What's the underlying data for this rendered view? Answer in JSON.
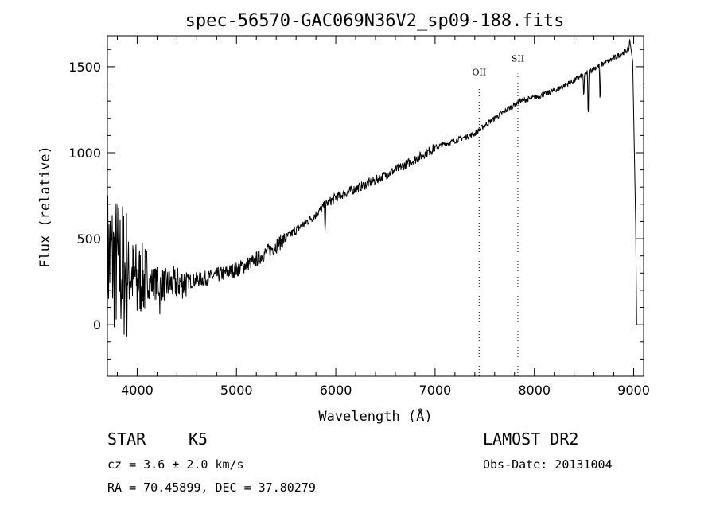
{
  "chart_data": {
    "type": "line",
    "title": "spec-56570-GAC069N36V2_sp09-188.fits",
    "xlabel": "Wavelength (Å)",
    "ylabel": "Flux (relative)",
    "xlim": [
      3700,
      9100
    ],
    "ylim": [
      -300,
      1680
    ],
    "xticks": [
      4000,
      5000,
      6000,
      7000,
      8000,
      9000
    ],
    "yticks": [
      0,
      500,
      1000,
      1500
    ],
    "xtick_labels": [
      "4000",
      "5000",
      "6000",
      "7000",
      "8000",
      "9000"
    ],
    "ytick_labels": [
      "0",
      "500",
      "1000",
      "1500"
    ],
    "lines": [
      {
        "label": "OII",
        "x": 7444,
        "label_y": 1450
      },
      {
        "label": "SII",
        "x": 7834,
        "label_y": 1530
      }
    ],
    "continuum": [
      [
        3700,
        400
      ],
      [
        3800,
        340
      ],
      [
        3900,
        300
      ],
      [
        4000,
        270
      ],
      [
        4100,
        250
      ],
      [
        4200,
        240
      ],
      [
        4300,
        230
      ],
      [
        4500,
        250
      ],
      [
        4700,
        270
      ],
      [
        5000,
        320
      ],
      [
        5200,
        380
      ],
      [
        5400,
        460
      ],
      [
        5600,
        550
      ],
      [
        5800,
        640
      ],
      [
        5900,
        700
      ],
      [
        6000,
        740
      ],
      [
        6200,
        790
      ],
      [
        6400,
        840
      ],
      [
        6600,
        900
      ],
      [
        6800,
        960
      ],
      [
        7000,
        1030
      ],
      [
        7200,
        1070
      ],
      [
        7400,
        1110
      ],
      [
        7500,
        1160
      ],
      [
        7700,
        1240
      ],
      [
        7850,
        1300
      ],
      [
        8000,
        1320
      ],
      [
        8200,
        1360
      ],
      [
        8400,
        1420
      ],
      [
        8600,
        1490
      ],
      [
        8800,
        1550
      ],
      [
        8950,
        1600
      ]
    ],
    "features": [
      {
        "x": 4000,
        "depth": 80
      },
      {
        "x": 4227,
        "depth": 100
      },
      {
        "x": 5175,
        "depth": 60
      },
      {
        "x": 5893,
        "depth": 150
      },
      {
        "x": 8498,
        "depth": 150
      },
      {
        "x": 8542,
        "depth": 300
      },
      {
        "x": 8662,
        "depth": 250
      }
    ],
    "seed": 7,
    "spike_tail": [
      [
        8960,
        1660
      ],
      [
        8990,
        1530
      ],
      [
        9020,
        600
      ],
      [
        9030,
        0
      ]
    ]
  },
  "info": {
    "object": "STAR",
    "subclass": "K5",
    "cz": "cz = 3.6 ± 2.0 km/s",
    "coords": "RA =  70.45899, DEC =  37.80279",
    "survey": "LAMOST DR2",
    "obs_date": "Obs-Date: 20131004"
  }
}
